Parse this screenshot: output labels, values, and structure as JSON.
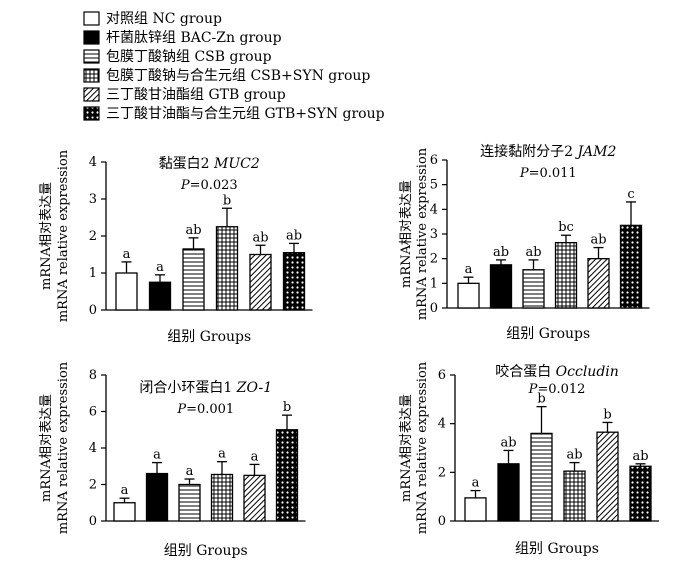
{
  "legend": [
    {
      "label": "对照组  NC group",
      "pattern": "white"
    },
    {
      "label": "杆菌肽锌组  BAC-Zn group",
      "pattern": "black"
    },
    {
      "label": "包膜丁酸钠组  CSB group",
      "pattern": "hlines"
    },
    {
      "label": "包膜丁酸钠与合生元组  CSB+SYN group",
      "pattern": "grid"
    },
    {
      "label": "三丁酸甘油酯组  GTB group",
      "pattern": "diag"
    },
    {
      "label": "三丁酸甘油酯与合生元组  GTB+SYN group",
      "pattern": "dots"
    }
  ],
  "chart_data": [
    {
      "type": "bar",
      "title_cn": "黏蛋白2 ",
      "title_gene": "MUC2",
      "p_prefix": "P",
      "p_value": "=0.023",
      "ylabel_cn": "mRNA相对表达量",
      "ylabel_en": "mRNA relative expression",
      "xlabel": "组别 Groups",
      "ylim": [
        0,
        4
      ],
      "yticks": [
        "0",
        "1",
        "2",
        "3",
        "4"
      ],
      "categories": [
        "NC group",
        "BAC-Zn group",
        "CSB group",
        "CSB+SYN group",
        "GTB group",
        "GTB+SYN group"
      ],
      "values": [
        1.0,
        0.75,
        1.65,
        2.25,
        1.5,
        1.55
      ],
      "errors": [
        0.3,
        0.2,
        0.3,
        0.5,
        0.25,
        0.25
      ],
      "letters": [
        "a",
        "a",
        "ab",
        "b",
        "ab",
        "ab"
      ]
    },
    {
      "type": "bar",
      "title_cn": "连接黏附分子2 ",
      "title_gene": "JAM2",
      "p_prefix": "P",
      "p_value": "=0.011",
      "ylabel_cn": "mRNA相对表达量",
      "ylabel_en": "mRNA relative expression",
      "xlabel": "组别 Groups",
      "ylim": [
        0,
        6
      ],
      "yticks": [
        "0",
        "1",
        "2",
        "3",
        "4",
        "5",
        "6"
      ],
      "categories": [
        "NC group",
        "BAC-Zn group",
        "CSB group",
        "CSB+SYN group",
        "GTB group",
        "GTB+SYN group"
      ],
      "values": [
        1.0,
        1.75,
        1.55,
        2.65,
        2.0,
        3.35
      ],
      "errors": [
        0.25,
        0.2,
        0.4,
        0.3,
        0.45,
        0.95
      ],
      "letters": [
        "a",
        "ab",
        "ab",
        "bc",
        "ab",
        "c"
      ]
    },
    {
      "type": "bar",
      "title_cn": "闭合小环蛋白1 ",
      "title_gene": "ZO-1",
      "p_prefix": "P",
      "p_value": "=0.001",
      "ylabel_cn": "mRNA相对表达量",
      "ylabel_en": "mRNA relative expression",
      "xlabel": "组别 Groups",
      "ylim": [
        0,
        8
      ],
      "yticks": [
        "0",
        "2",
        "4",
        "6",
        "8"
      ],
      "categories": [
        "NC group",
        "BAC-Zn group",
        "CSB group",
        "CSB+SYN group",
        "GTB group",
        "GTB+SYN group"
      ],
      "values": [
        1.0,
        2.6,
        2.0,
        2.55,
        2.5,
        5.0
      ],
      "errors": [
        0.25,
        0.6,
        0.3,
        0.7,
        0.6,
        0.8
      ],
      "letters": [
        "a",
        "a",
        "a",
        "a",
        "a",
        "b"
      ]
    },
    {
      "type": "bar",
      "title_cn": "咬合蛋白 ",
      "title_gene": "Occludin",
      "p_prefix": "P",
      "p_value": "=0.012",
      "ylabel_cn": "mRNA相对表达量",
      "ylabel_en": "mRNA relative expression",
      "xlabel": "组别 Groups",
      "ylim": [
        0,
        6
      ],
      "yticks": [
        "0",
        "2",
        "4",
        "6"
      ],
      "categories": [
        "NC group",
        "BAC-Zn group",
        "CSB group",
        "CSB+SYN group",
        "GTB group",
        "GTB+SYN group"
      ],
      "values": [
        0.95,
        2.35,
        3.6,
        2.05,
        3.65,
        2.25
      ],
      "errors": [
        0.3,
        0.55,
        1.1,
        0.35,
        0.4,
        0.1
      ],
      "letters": [
        "a",
        "ab",
        "b",
        "ab",
        "b",
        "ab"
      ]
    }
  ]
}
